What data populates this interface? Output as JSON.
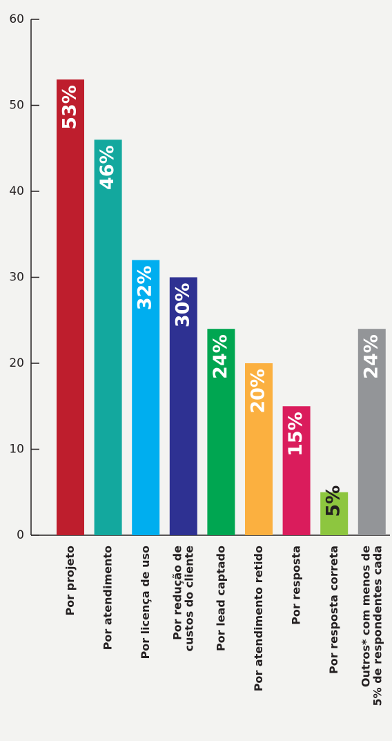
{
  "chart_data": {
    "type": "bar",
    "categories": [
      "Por projeto",
      "Por atendimento",
      "Por licença de uso",
      "Por redução de\ncustos do cliente",
      "Por lead captado",
      "Por atendimento retido",
      "Por resposta",
      "Por resposta correta",
      "Outros* com menos de\n5% de respondentes cada"
    ],
    "values": [
      53,
      46,
      32,
      30,
      24,
      20,
      15,
      5,
      24
    ],
    "value_labels": [
      "53%",
      "46%",
      "32%",
      "30%",
      "24%",
      "20%",
      "15%",
      "5%",
      "24%"
    ],
    "colors": [
      "#be1e2d",
      "#13a89e",
      "#00aeef",
      "#2e3192",
      "#00a651",
      "#fbb040",
      "#da1c5c",
      "#8dc63f",
      "#939598"
    ],
    "ylim": [
      0,
      60
    ],
    "yticks": [
      0,
      10,
      20,
      30,
      40,
      50,
      60
    ]
  }
}
